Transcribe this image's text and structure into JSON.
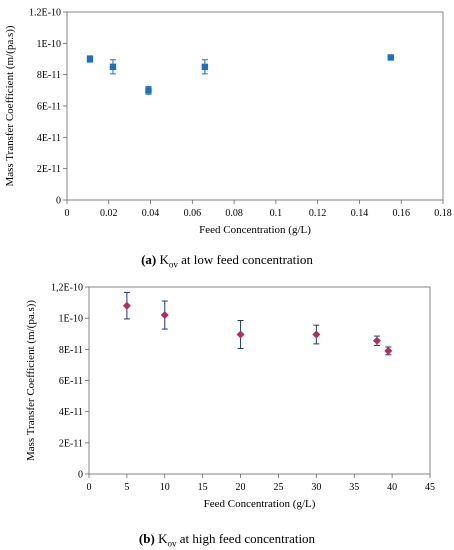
{
  "captions": [
    {
      "letter": "(a)",
      "prefix": " K",
      "sub": "ov",
      "suffix": " at low feed concentration"
    },
    {
      "letter": "(b)",
      "prefix": " K",
      "sub": "ov",
      "suffix": " at high feed concentration"
    }
  ],
  "chart_data": [
    {
      "type": "scatter",
      "title": "",
      "xlabel": "Feed Concentration (g/L)",
      "ylabel": "Mass Transfer Coefficient (m/(pa.s))",
      "xlim": [
        0,
        0.18
      ],
      "ylim": [
        0,
        1.2e-10
      ],
      "x_ticks": [
        0,
        0.02,
        0.04,
        0.06,
        0.08,
        0.1,
        0.12,
        0.14,
        0.16,
        0.18
      ],
      "x_tick_labels": [
        "0",
        "0.02",
        "0.04",
        "0.06",
        "0.08",
        "0.1",
        "0.12",
        "0.14",
        "0.16",
        "0.18"
      ],
      "y_ticks": [
        0,
        2e-11,
        4e-11,
        6e-11,
        8e-11,
        1e-10,
        1.2e-10
      ],
      "y_tick_labels": [
        "0",
        "2E-11",
        "4E-11",
        "6E-11",
        "8E-11",
        "1E-10",
        "1.2E-10"
      ],
      "grid": false,
      "marker": "square",
      "color": "#1f6fbf",
      "series": [
        {
          "x": [
            0.011,
            0.022,
            0.039,
            0.066,
            0.155
          ],
          "y": [
            9e-11,
            8.5e-11,
            7e-11,
            8.5e-11,
            9.1e-11
          ],
          "error": [
            2e-12,
            4.5e-12,
            2.5e-12,
            4.5e-12,
            1.5e-12
          ]
        }
      ]
    },
    {
      "type": "scatter",
      "title": "",
      "xlabel": "Feed Concentration (g/L)",
      "ylabel": "Mass Transfer Coefficient (m/(pa.s))",
      "xlim": [
        0,
        45
      ],
      "ylim": [
        0,
        1.2e-10
      ],
      "x_ticks": [
        0,
        5,
        10,
        15,
        20,
        25,
        30,
        35,
        40,
        45
      ],
      "x_tick_labels": [
        "0",
        "5",
        "10",
        "15",
        "20",
        "25",
        "30",
        "35",
        "40",
        "45"
      ],
      "y_ticks": [
        0,
        2e-11,
        4e-11,
        6e-11,
        8e-11,
        1e-10,
        1.2e-10
      ],
      "y_tick_labels": [
        "0",
        "2E-11",
        "4E-11",
        "6E-11",
        "8E-11",
        "1E-10",
        "1,2E-10"
      ],
      "grid": false,
      "marker": "diamond",
      "color": "#b0305a",
      "error_color": "#1f3a6b",
      "series": [
        {
          "x": [
            5,
            10,
            20,
            30,
            38,
            39.5
          ],
          "y": [
            1.08e-10,
            1.02e-10,
            8.95e-11,
            8.95e-11,
            8.55e-11,
            7.9e-11
          ],
          "error": [
            8.5e-12,
            9e-12,
            9e-12,
            6e-12,
            3e-12,
            2.5e-12
          ]
        }
      ]
    }
  ]
}
